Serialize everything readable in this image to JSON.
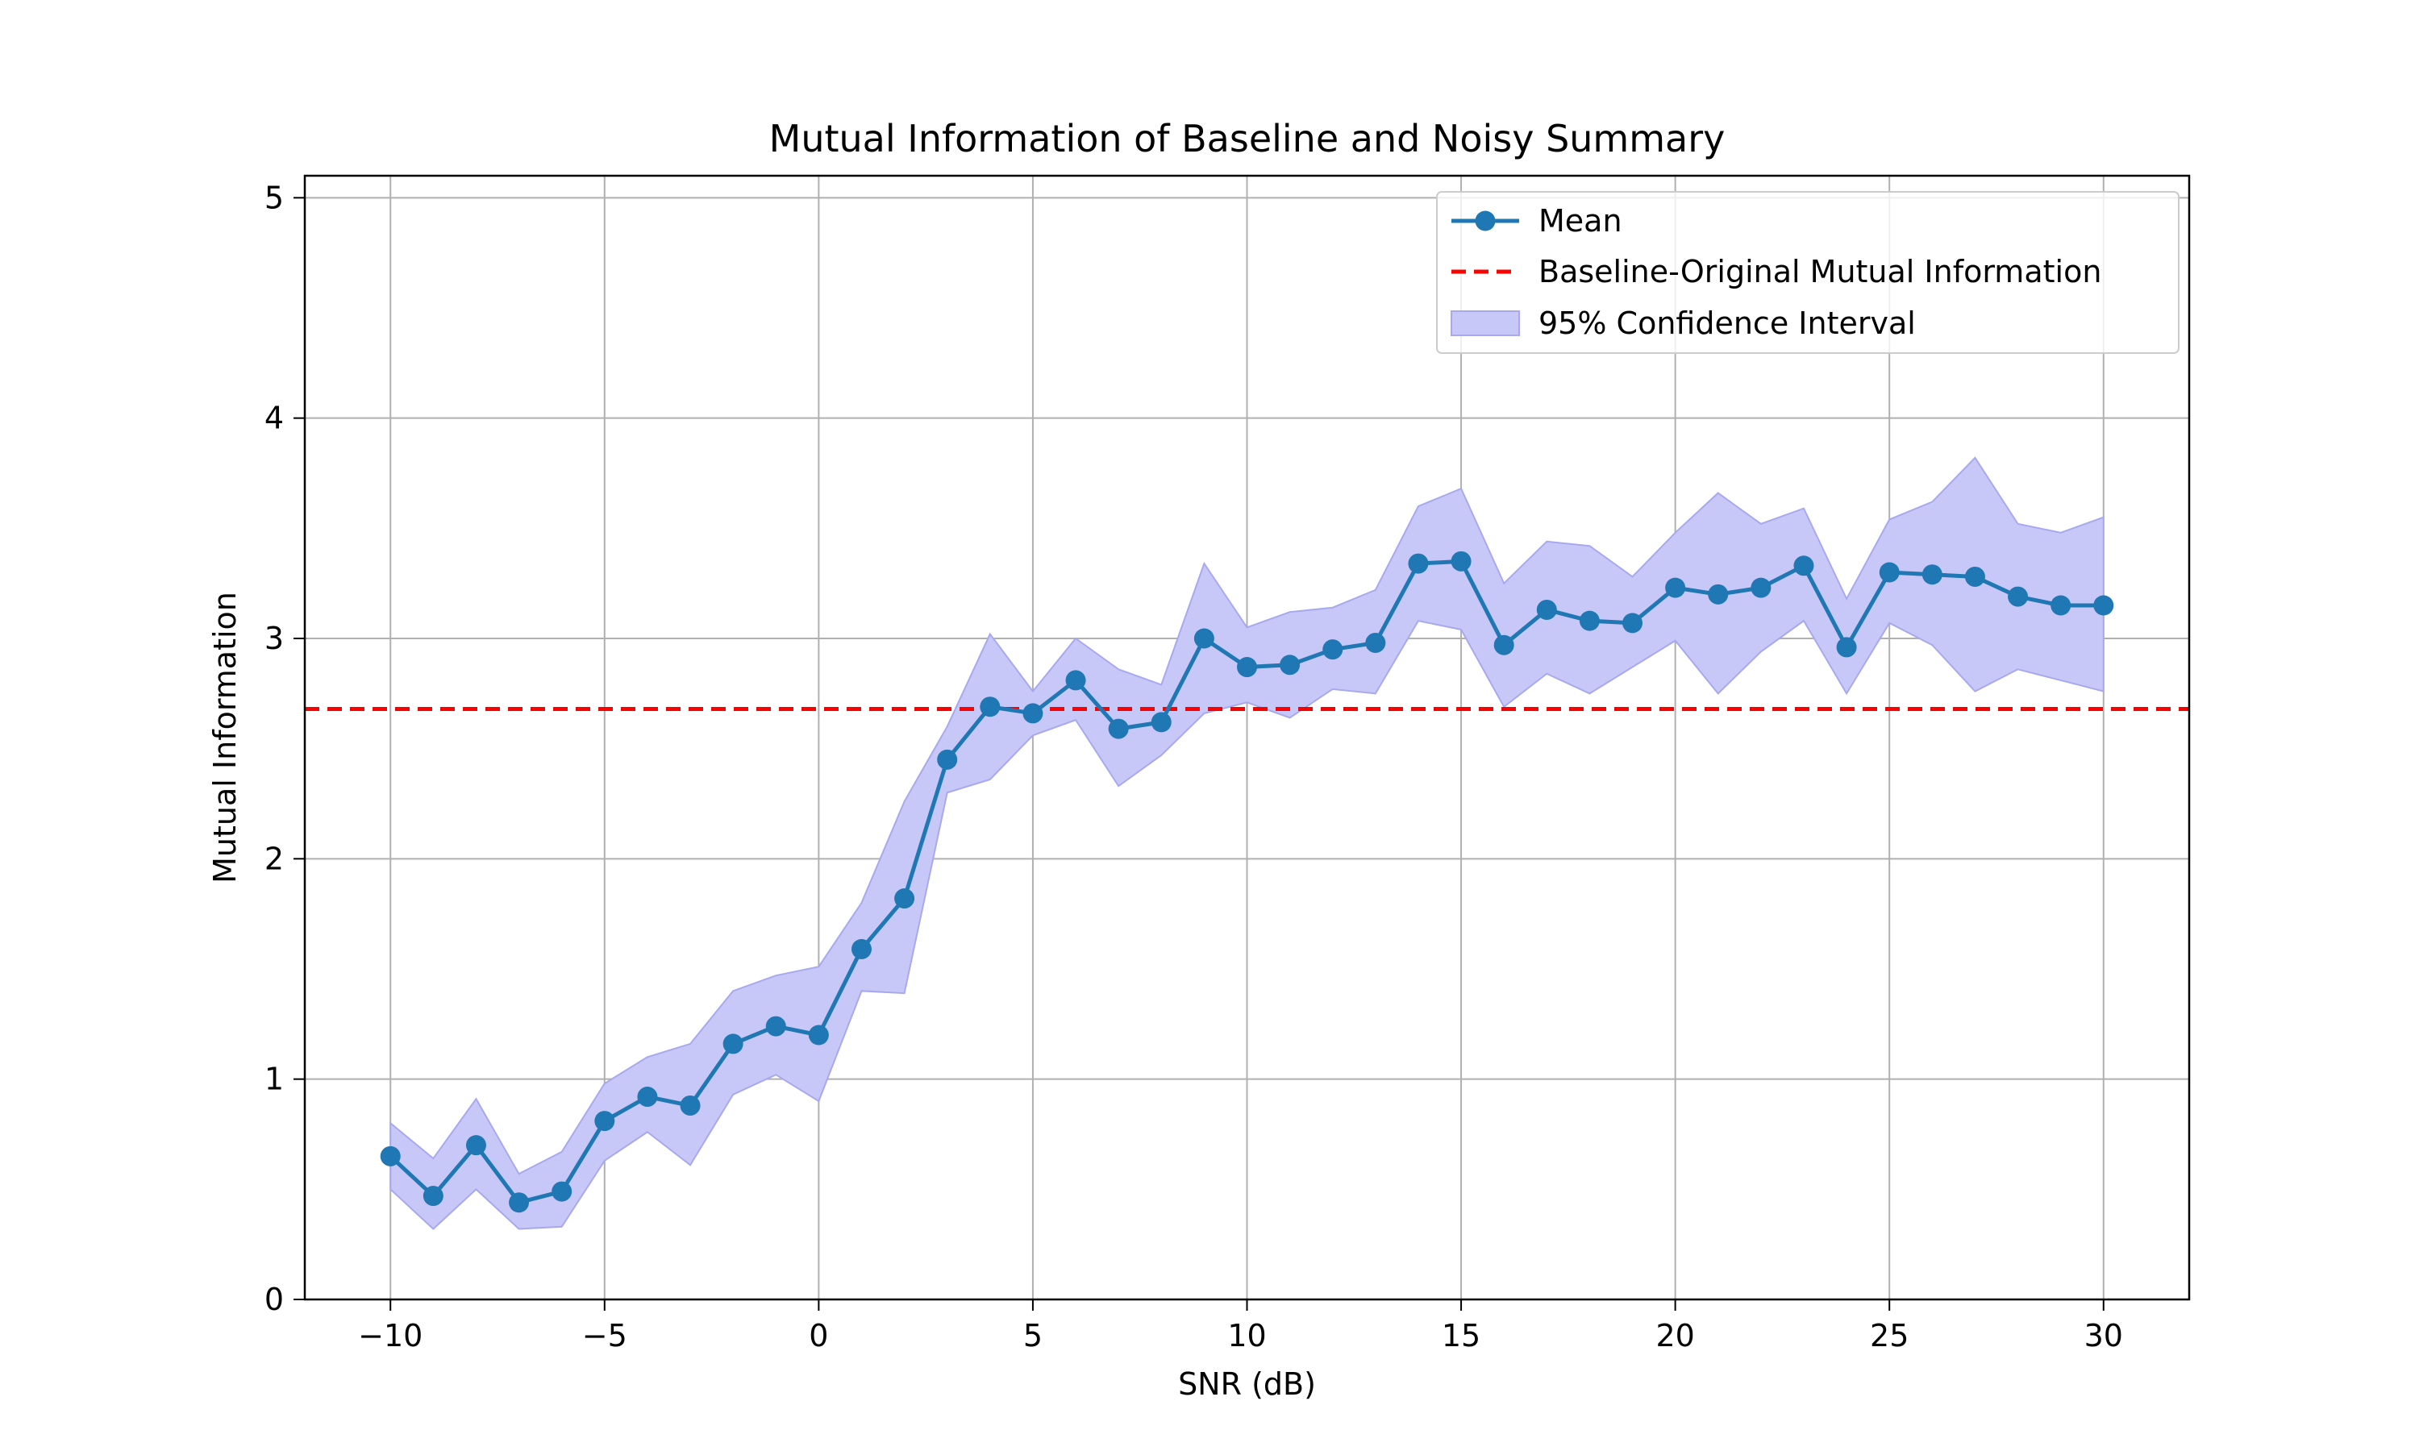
{
  "chart_data": {
    "type": "line",
    "title": "Mutual Information of Baseline and Noisy Summary",
    "xlabel": "SNR (dB)",
    "ylabel": "Mutual Information",
    "xlim": [
      -12,
      32
    ],
    "ylim": [
      0,
      5.1
    ],
    "xticks": [
      -10,
      -5,
      0,
      5,
      10,
      15,
      20,
      25,
      30
    ],
    "xtick_labels": [
      "−10",
      "−5",
      "0",
      "5",
      "10",
      "15",
      "20",
      "25",
      "30"
    ],
    "yticks": [
      0,
      1,
      2,
      3,
      4,
      5
    ],
    "ytick_labels": [
      "0",
      "1",
      "2",
      "3",
      "4",
      "5"
    ],
    "grid": true,
    "legend_position": "top-right",
    "colors": {
      "mean": "#1f77b4",
      "baseline": "#ff0000",
      "ci_fill": "#c8c8f8",
      "ci_edge": "#a8a8f0",
      "grid": "#b0b0b0"
    },
    "x": [
      -10,
      -9,
      -8,
      -7,
      -6,
      -5,
      -4,
      -3,
      -2,
      -1,
      0,
      1,
      2,
      3,
      4,
      5,
      6,
      7,
      8,
      9,
      10,
      11,
      12,
      13,
      14,
      15,
      16,
      17,
      18,
      19,
      20,
      21,
      22,
      23,
      24,
      25,
      26,
      27,
      28,
      29,
      30
    ],
    "series": [
      {
        "name": "Mean",
        "style": "line-marker",
        "values": [
          0.65,
          0.47,
          0.7,
          0.44,
          0.49,
          0.81,
          0.92,
          0.88,
          1.16,
          1.24,
          1.2,
          1.59,
          1.82,
          2.45,
          2.69,
          2.66,
          2.81,
          2.59,
          2.62,
          3.0,
          2.87,
          2.88,
          2.95,
          2.98,
          3.34,
          3.35,
          2.97,
          3.13,
          3.08,
          3.07,
          3.23,
          3.2,
          3.23,
          3.33,
          2.96,
          3.3,
          3.29,
          3.28,
          3.19,
          3.15,
          3.15
        ]
      },
      {
        "name": "Baseline-Original Mutual Information",
        "style": "dashed-hline",
        "value": 2.68
      },
      {
        "name": "95% Confidence Interval",
        "style": "band",
        "lower": [
          0.5,
          0.32,
          0.5,
          0.32,
          0.33,
          0.63,
          0.76,
          0.61,
          0.93,
          1.02,
          0.9,
          1.4,
          1.39,
          2.3,
          2.36,
          2.56,
          2.63,
          2.33,
          2.47,
          2.66,
          2.71,
          2.64,
          2.77,
          2.75,
          3.08,
          3.04,
          2.69,
          2.84,
          2.75,
          2.87,
          2.99,
          2.75,
          2.94,
          3.08,
          2.75,
          3.07,
          2.97,
          2.76,
          2.86,
          2.81,
          2.76
        ],
        "upper": [
          0.8,
          0.64,
          0.91,
          0.57,
          0.67,
          0.98,
          1.1,
          1.16,
          1.4,
          1.47,
          1.51,
          1.8,
          2.26,
          2.6,
          3.02,
          2.76,
          3.0,
          2.86,
          2.79,
          3.34,
          3.05,
          3.12,
          3.14,
          3.22,
          3.6,
          3.68,
          3.25,
          3.44,
          3.42,
          3.28,
          3.48,
          3.66,
          3.52,
          3.59,
          3.18,
          3.54,
          3.62,
          3.82,
          3.52,
          3.48,
          3.55
        ]
      }
    ]
  }
}
